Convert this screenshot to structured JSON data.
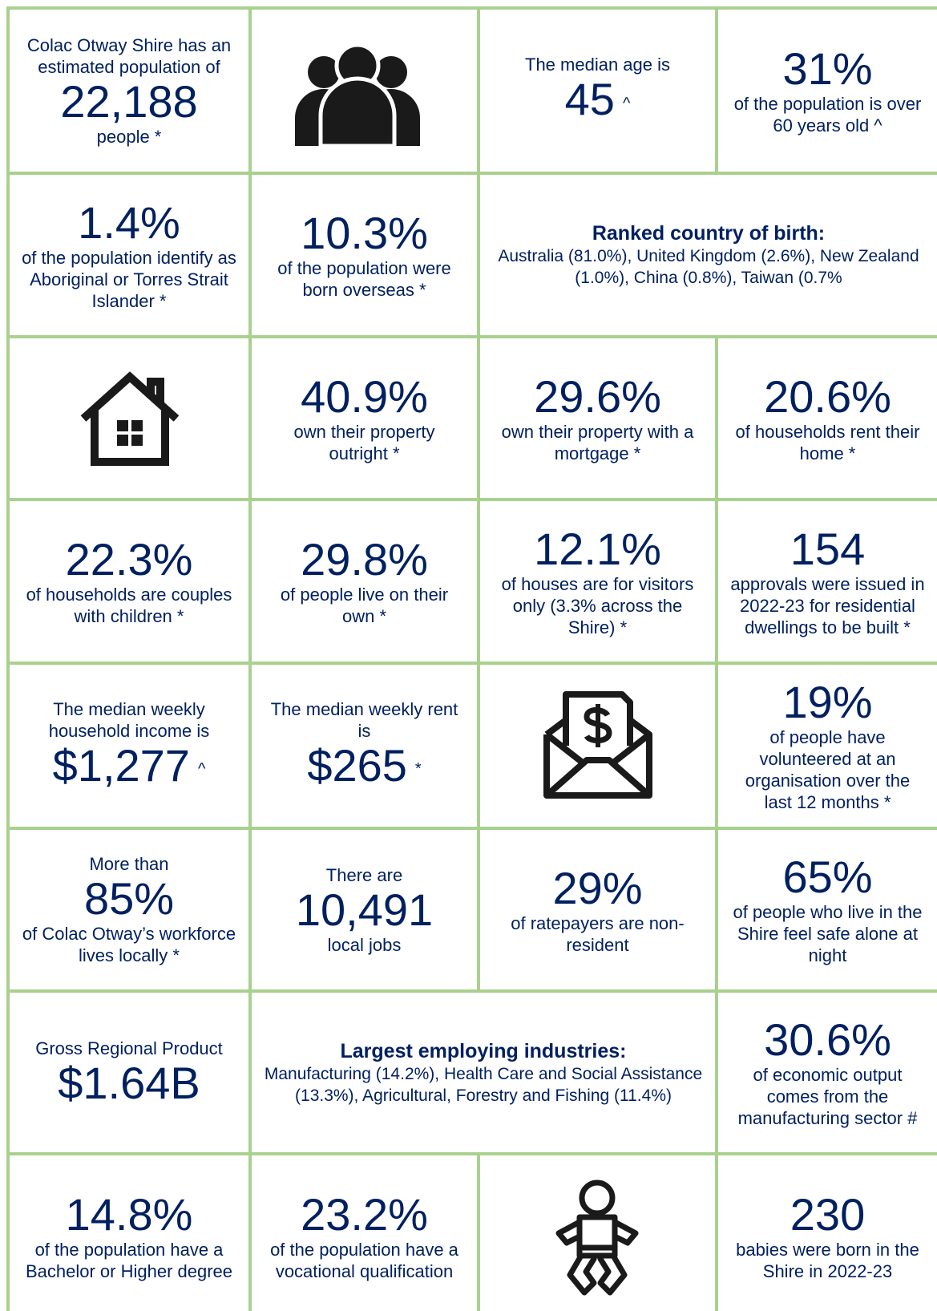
{
  "cells": [
    {
      "lead": "Colac Otway Shire has an estimated population of",
      "figure": "22,188",
      "text": "people *"
    },
    {
      "lead": "The median age is",
      "figure": "45",
      "mark": "^"
    },
    {
      "figure": "31%",
      "text": "of the population is over 60 years old ^"
    },
    {
      "figure": "1.4%",
      "text": "of the population identify as Aboriginal or Torres Strait Islander *"
    },
    {
      "figure": "10.3%",
      "text": "of the population were born overseas *"
    },
    {
      "heading": "Ranked country of birth:",
      "text": "Australia (81.0%), United Kingdom (2.6%), New Zealand (1.0%), China (0.8%), Taiwan (0.7%"
    },
    {
      "figure": "40.9%",
      "text": "own their property outright *"
    },
    {
      "figure": "29.6%",
      "text": "own their property with a mortgage *"
    },
    {
      "figure": "20.6%",
      "text": "of households rent their home *"
    },
    {
      "figure": "22.3%",
      "text": "of households are couples with children *"
    },
    {
      "figure": "29.8%",
      "text": "of people live on their own *"
    },
    {
      "figure": "12.1%",
      "text": "of houses are for visitors only (3.3% across the Shire)  *"
    },
    {
      "figure": "154",
      "text": "approvals were issued in 2022-23 for residential dwellings to be built *"
    },
    {
      "lead": "The median weekly household income is",
      "figure": "$1,277",
      "mark": "^"
    },
    {
      "lead": "The median weekly rent is",
      "figure": "$265",
      "mark": "*"
    },
    {
      "figure": "19%",
      "text": "of people have volunteered at an organisation over the last 12 months *"
    },
    {
      "lead": "More than",
      "figure": "85%",
      "text": "of Colac Otway’s workforce lives locally *"
    },
    {
      "lead": "There are",
      "figure": "10,491",
      "text": "local jobs"
    },
    {
      "figure": "29%",
      "text": "of ratepayers are non-resident"
    },
    {
      "figure": "65%",
      "text": "of people who live in the Shire feel safe alone at night"
    },
    {
      "lead": "Gross Regional Product",
      "figure": "$1.64B"
    },
    {
      "heading": "Largest employing industries:",
      "text": "Manufacturing (14.2%), Health Care and Social Assistance (13.3%), Agricultural, Forestry and Fishing (11.4%)"
    },
    {
      "figure": "30.6%",
      "text": "of economic output comes from the manufacturing sector #"
    },
    {
      "figure": "14.8%",
      "text": "of the population have a Bachelor or Higher degree"
    },
    {
      "figure": "23.2%",
      "text": "of the population have a vocational qualification"
    },
    {
      "figure": "230",
      "text": "babies were born in the Shire in 2022-23"
    }
  ]
}
